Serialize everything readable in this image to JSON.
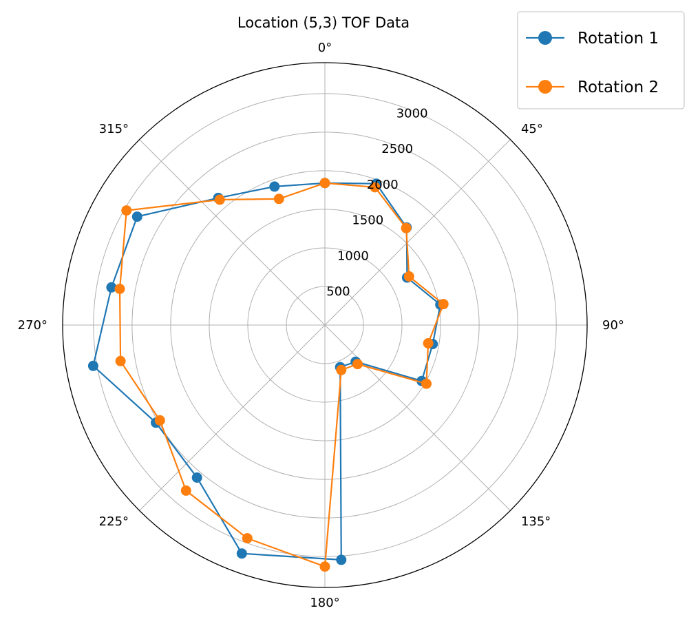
{
  "chart_data": {
    "type": "line",
    "subtype": "polar",
    "title": "Location (5,3) TOF Data",
    "theta_direction": "clockwise",
    "theta_zero_location": "top",
    "r_range": [
      0,
      3400
    ],
    "r_ticks": [
      500,
      1000,
      1500,
      2000,
      2500,
      3000
    ],
    "r_tick_labels": [
      "500",
      "1000",
      "1500",
      "2000",
      "2500",
      "3000"
    ],
    "theta_tick_labels": [
      "0°",
      "45°",
      "90°",
      "135°",
      "180°",
      "225°",
      "270°",
      "315°"
    ],
    "grid": true,
    "legend_position": "top-right",
    "series": [
      {
        "name": "Rotation 1",
        "color": "#1f77b4",
        "points": [
          {
            "theta": 0,
            "r": 1840
          },
          {
            "theta": 20,
            "r": 1950
          },
          {
            "theta": 40,
            "r": 1650
          },
          {
            "theta": 60,
            "r": 1230
          },
          {
            "theta": 80,
            "r": 1520
          },
          {
            "theta": 100,
            "r": 1420
          },
          {
            "theta": 120,
            "r": 1450
          },
          {
            "theta": 140,
            "r": 620
          },
          {
            "theta": 160,
            "r": 580
          },
          {
            "theta": 176,
            "r": 3050
          },
          {
            "theta": 200,
            "r": 3150
          },
          {
            "theta": 220,
            "r": 2580
          },
          {
            "theta": 240,
            "r": 2530
          },
          {
            "theta": 260,
            "r": 3050
          },
          {
            "theta": 280,
            "r": 2810
          },
          {
            "theta": 300,
            "r": 2810
          },
          {
            "theta": 320,
            "r": 2150
          },
          {
            "theta": 340,
            "r": 1910
          }
        ]
      },
      {
        "name": "Rotation 2",
        "color": "#ff7f0e",
        "points": [
          {
            "theta": 0,
            "r": 1840
          },
          {
            "theta": 20,
            "r": 1900
          },
          {
            "theta": 40,
            "r": 1640
          },
          {
            "theta": 60,
            "r": 1260
          },
          {
            "theta": 80,
            "r": 1560
          },
          {
            "theta": 100,
            "r": 1360
          },
          {
            "theta": 120,
            "r": 1520
          },
          {
            "theta": 140,
            "r": 660
          },
          {
            "theta": 160,
            "r": 620
          },
          {
            "theta": 180,
            "r": 3130
          },
          {
            "theta": 200,
            "r": 2940
          },
          {
            "theta": 220,
            "r": 2800
          },
          {
            "theta": 240,
            "r": 2470
          },
          {
            "theta": 260,
            "r": 2690
          },
          {
            "theta": 280,
            "r": 2700
          },
          {
            "theta": 300,
            "r": 2970
          },
          {
            "theta": 320,
            "r": 2120
          },
          {
            "theta": 340,
            "r": 1740
          }
        ]
      }
    ]
  }
}
